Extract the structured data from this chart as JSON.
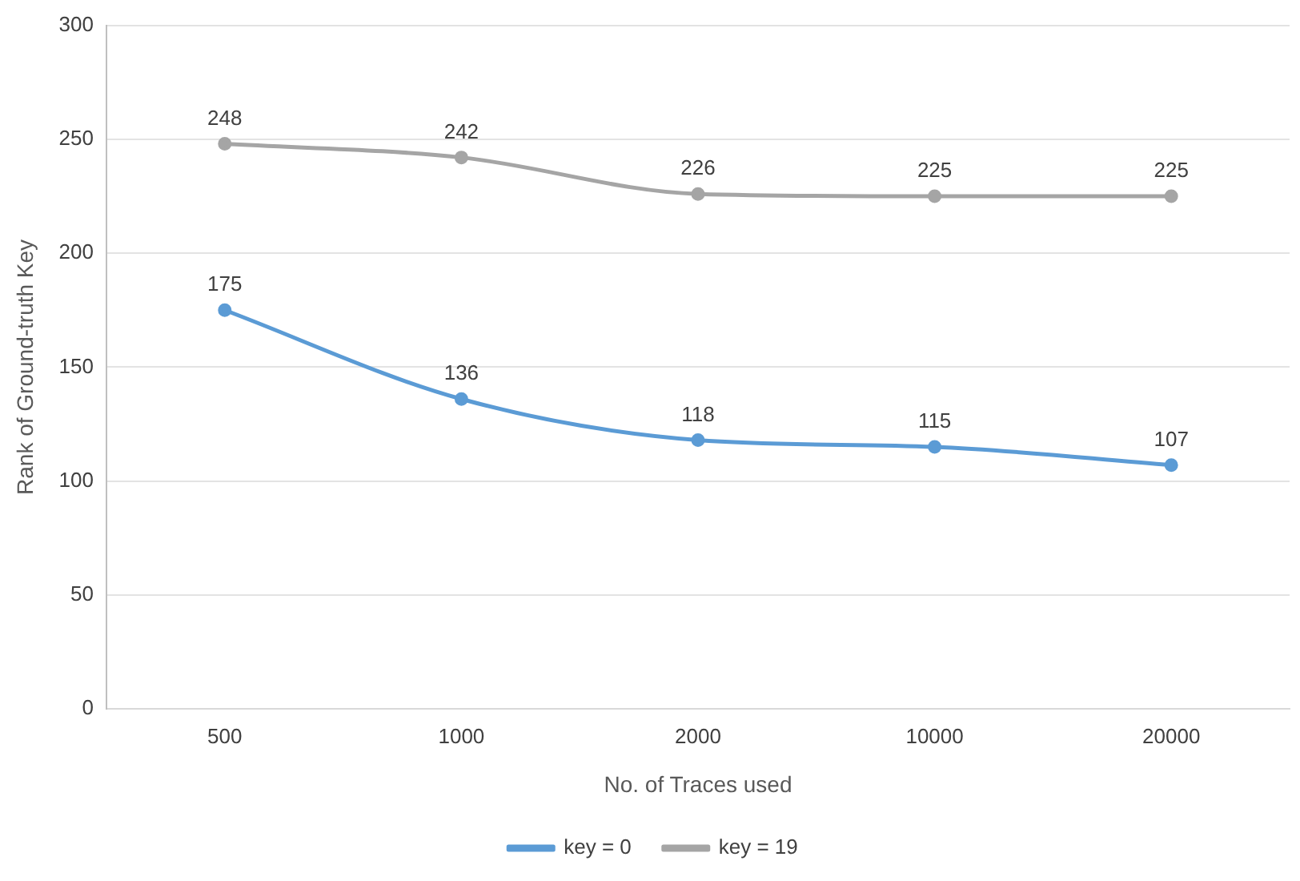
{
  "chart_data": {
    "type": "line",
    "xlabel": "No. of Traces used",
    "ylabel": "Rank of Ground-truth Key",
    "categories": [
      "500",
      "1000",
      "2000",
      "10000",
      "20000"
    ],
    "series": [
      {
        "name": "key = 0",
        "color": "#5b9bd5",
        "values": [
          175,
          136,
          118,
          115,
          107
        ]
      },
      {
        "name": "key = 19",
        "color": "#a5a5a5",
        "values": [
          248,
          242,
          226,
          225,
          225
        ]
      }
    ],
    "ylim": [
      0,
      300
    ],
    "yticks": [
      0,
      50,
      100,
      150,
      200,
      250,
      300
    ],
    "grid": "y",
    "legend": "bottom",
    "marker": "circle",
    "line_style": "solid",
    "data_labels": true
  }
}
